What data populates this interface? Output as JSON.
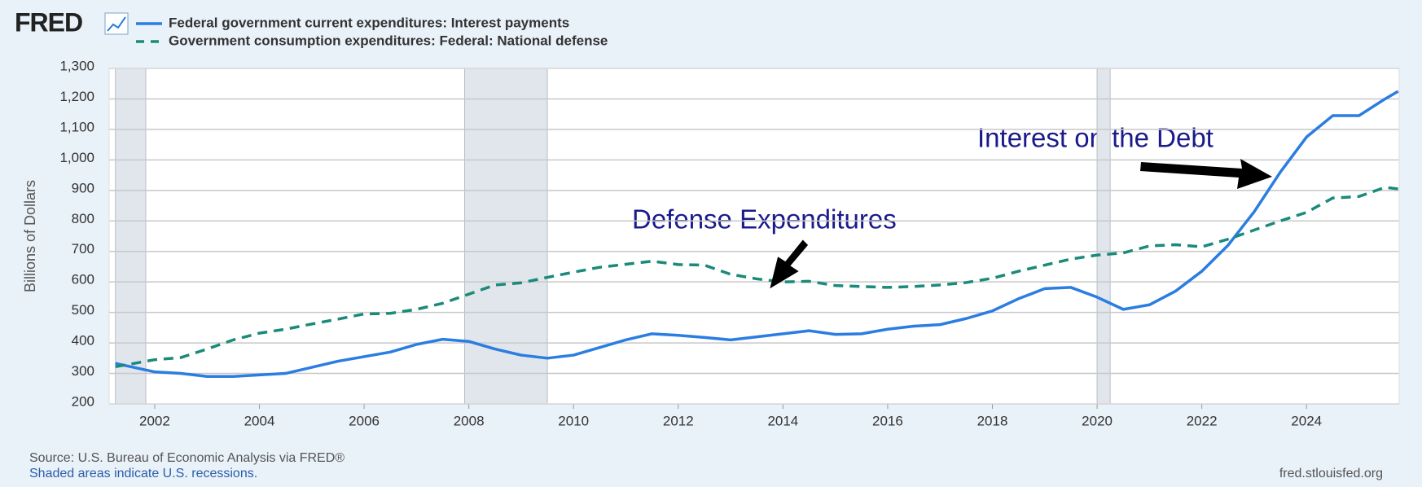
{
  "logo": "FRED",
  "footer": {
    "source": "Source: U.S. Bureau of Economic Analysis via FRED®",
    "recession_note": "Shaded areas indicate U.S. recessions.",
    "site": "fred.stlouisfed.org"
  },
  "chart_data": {
    "type": "line",
    "y_label": "Billions of Dollars",
    "annotations": [
      "Defense Expenditures",
      "Interest on the Debt"
    ],
    "x": [
      2001.25,
      2002,
      2002.5,
      2003,
      2003.5,
      2004,
      2004.5,
      2005,
      2005.5,
      2006,
      2006.5,
      2007,
      2007.5,
      2008,
      2008.5,
      2009,
      2009.5,
      2010,
      2010.5,
      2011,
      2011.5,
      2012,
      2012.5,
      2013,
      2013.5,
      2014,
      2014.5,
      2015,
      2015.5,
      2016,
      2016.5,
      2017,
      2017.5,
      2018,
      2018.5,
      2019,
      2019.5,
      2020,
      2020.5,
      2021,
      2021.5,
      2022,
      2022.5,
      2023,
      2023.5,
      2024,
      2024.5,
      2025,
      2025.5,
      2025.75
    ],
    "series": [
      {
        "name": "Federal government current expenditures: Interest payments",
        "color": "#2a7de1",
        "dashed": false,
        "values": [
          333,
          305,
          300,
          290,
          290,
          295,
          300,
          320,
          340,
          355,
          370,
          395,
          412,
          405,
          380,
          360,
          350,
          360,
          385,
          410,
          430,
          425,
          418,
          410,
          420,
          430,
          440,
          428,
          430,
          445,
          455,
          460,
          480,
          505,
          545,
          578,
          582,
          550,
          510,
          525,
          570,
          635,
          720,
          830,
          960,
          1075,
          1145,
          1145,
          1200,
          1225
        ]
      },
      {
        "name": "Government consumption expenditures: Federal: National defense",
        "color": "#1a8a7a",
        "dashed": true,
        "values": [
          322,
          345,
          352,
          380,
          410,
          432,
          445,
          462,
          478,
          495,
          497,
          510,
          530,
          560,
          590,
          597,
          615,
          632,
          648,
          658,
          668,
          657,
          655,
          625,
          610,
          600,
          602,
          588,
          585,
          582,
          585,
          590,
          598,
          612,
          635,
          655,
          675,
          688,
          695,
          718,
          722,
          715,
          740,
          770,
          800,
          828,
          875,
          880,
          910,
          905
        ]
      }
    ],
    "recessions": [
      [
        2001.25,
        2001.83
      ],
      [
        2007.92,
        2009.5
      ],
      [
        2020.0,
        2020.25
      ]
    ],
    "xlim": [
      2001.13,
      2025.77
    ],
    "xticks": [
      2002,
      2004,
      2006,
      2008,
      2010,
      2012,
      2014,
      2016,
      2018,
      2020,
      2022,
      2024
    ],
    "ylim": [
      200,
      1300
    ],
    "yticks": [
      200,
      300,
      400,
      500,
      600,
      700,
      800,
      900,
      {
        "value": 1000,
        "label": "1,000"
      },
      {
        "value": 1100,
        "label": "1,100"
      },
      {
        "value": 1200,
        "label": "1,200"
      },
      {
        "value": 1300,
        "label": "1,300"
      }
    ],
    "grid": true
  }
}
